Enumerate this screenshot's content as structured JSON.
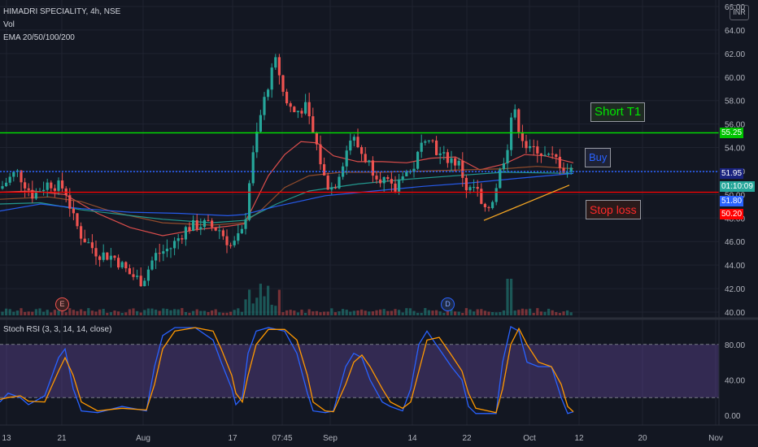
{
  "header": {
    "symbol": "HIMADRI SPECIALITY, 4h, NSE",
    "vol": "Vol",
    "ema": "EMA 20/50/100/200",
    "currency": "INR"
  },
  "rsi_title": "Stoch RSI (3, 3, 14, 14, close)",
  "annotations": {
    "short_t1": "Short T1",
    "buy": "Buy",
    "stop_loss": "Stop loss"
  },
  "events": {
    "earnings": "E",
    "dividend": "D"
  },
  "price_tags": {
    "level_high": "55.25",
    "last_price": "51.95",
    "countdown": "01:10:09",
    "ema_value": "51.80",
    "level_low": "50.20"
  },
  "colors": {
    "background": "#131722",
    "up": "#26a69a",
    "down": "#ef5350",
    "green_line": "#00e600",
    "red_line": "#ff0000",
    "blue_line": "#2962ff",
    "trendline": "#f5a623",
    "rsi_k": "#2962ff",
    "rsi_d": "#ff9800",
    "rsi_band": "#7e57c2"
  },
  "chart_data": {
    "type": "candlestick",
    "price_axis": {
      "ticks": [
        "66.00",
        "64.00",
        "62.00",
        "60.00",
        "58.00",
        "56.00",
        "54.00",
        "52.00",
        "50.00",
        "48.00",
        "46.00",
        "44.00",
        "42.00",
        "40.00"
      ],
      "range": [
        40,
        66
      ]
    },
    "x_axis": {
      "ticks": [
        "13",
        "21",
        "Aug",
        "17",
        "07:45",
        "Sep",
        "14",
        "22",
        "Oct",
        "12",
        "20",
        "Nov"
      ]
    },
    "horizontal_levels": [
      {
        "value": 55.25,
        "color": "green"
      },
      {
        "value": 51.95,
        "color": "blue",
        "style": "dotted"
      },
      {
        "value": 50.2,
        "color": "red"
      }
    ],
    "trendline": {
      "from": [
        595,
        47.8
      ],
      "to": [
        700,
        50.8
      ]
    },
    "ema_series": [
      {
        "name": "EMA 20",
        "color": "#ef5350",
        "points": [
          [
            0,
            50.2
          ],
          [
            40,
            50.3
          ],
          [
            80,
            50.0
          ],
          [
            120,
            48.4
          ],
          [
            160,
            47.2
          ],
          [
            200,
            46.5
          ],
          [
            240,
            47.0
          ],
          [
            280,
            47.3
          ],
          [
            300,
            47.5
          ],
          [
            310,
            48.8
          ],
          [
            330,
            51.6
          ],
          [
            350,
            53.4
          ],
          [
            370,
            54.5
          ],
          [
            390,
            54.4
          ],
          [
            410,
            53.3
          ],
          [
            440,
            52.8
          ],
          [
            470,
            52.8
          ],
          [
            500,
            52.7
          ],
          [
            530,
            53.1
          ],
          [
            560,
            53.2
          ],
          [
            590,
            52.1
          ],
          [
            620,
            52.6
          ],
          [
            645,
            53.4
          ],
          [
            670,
            53.3
          ],
          [
            705,
            52.7
          ]
        ]
      },
      {
        "name": "EMA 50",
        "color": "#a0522d",
        "points": [
          [
            0,
            49.6
          ],
          [
            60,
            49.8
          ],
          [
            100,
            49.4
          ],
          [
            140,
            48.5
          ],
          [
            200,
            47.6
          ],
          [
            260,
            47.4
          ],
          [
            300,
            47.6
          ],
          [
            320,
            48.6
          ],
          [
            350,
            50.6
          ],
          [
            380,
            51.6
          ],
          [
            420,
            51.9
          ],
          [
            470,
            51.9
          ],
          [
            520,
            52.0
          ],
          [
            570,
            52.1
          ],
          [
            620,
            52.2
          ],
          [
            660,
            52.4
          ],
          [
            705,
            52.2
          ]
        ]
      },
      {
        "name": "EMA 100",
        "color": "#26a69a",
        "points": [
          [
            0,
            49.2
          ],
          [
            50,
            49.3
          ],
          [
            100,
            48.7
          ],
          [
            150,
            48.3
          ],
          [
            200,
            47.9
          ],
          [
            260,
            47.6
          ],
          [
            300,
            47.8
          ],
          [
            340,
            49.2
          ],
          [
            380,
            50.3
          ],
          [
            440,
            50.9
          ],
          [
            500,
            51.3
          ],
          [
            560,
            51.6
          ],
          [
            620,
            51.9
          ],
          [
            705,
            51.8
          ]
        ]
      },
      {
        "name": "EMA 200",
        "color": "#2962ff",
        "points": [
          [
            0,
            48.6
          ],
          [
            50,
            49.2
          ],
          [
            100,
            48.8
          ],
          [
            160,
            48.5
          ],
          [
            220,
            48.4
          ],
          [
            280,
            48.2
          ],
          [
            300,
            48.3
          ],
          [
            340,
            49.0
          ],
          [
            400,
            49.9
          ],
          [
            460,
            50.3
          ],
          [
            520,
            50.7
          ],
          [
            580,
            51.0
          ],
          [
            640,
            51.4
          ],
          [
            705,
            51.8
          ]
        ]
      }
    ],
    "stoch_rsi": {
      "axis_ticks": [
        "80.00",
        "40.00",
        "0.00"
      ],
      "bands": [
        20,
        80
      ],
      "k": [
        [
          0,
          15
        ],
        [
          10,
          25
        ],
        [
          25,
          20
        ],
        [
          35,
          12
        ],
        [
          55,
          22
        ],
        [
          72,
          65
        ],
        [
          80,
          75
        ],
        [
          90,
          30
        ],
        [
          100,
          5
        ],
        [
          120,
          3
        ],
        [
          150,
          10
        ],
        [
          180,
          5
        ],
        [
          190,
          55
        ],
        [
          200,
          90
        ],
        [
          215,
          99
        ],
        [
          240,
          99
        ],
        [
          262,
          85
        ],
        [
          272,
          60
        ],
        [
          285,
          30
        ],
        [
          290,
          12
        ],
        [
          298,
          20
        ],
        [
          305,
          70
        ],
        [
          315,
          95
        ],
        [
          330,
          99
        ],
        [
          350,
          95
        ],
        [
          365,
          70
        ],
        [
          378,
          25
        ],
        [
          385,
          5
        ],
        [
          400,
          3
        ],
        [
          410,
          5
        ],
        [
          425,
          55
        ],
        [
          435,
          70
        ],
        [
          445,
          65
        ],
        [
          455,
          40
        ],
        [
          470,
          15
        ],
        [
          480,
          10
        ],
        [
          495,
          5
        ],
        [
          505,
          30
        ],
        [
          515,
          80
        ],
        [
          525,
          95
        ],
        [
          540,
          75
        ],
        [
          555,
          55
        ],
        [
          568,
          40
        ],
        [
          576,
          10
        ],
        [
          585,
          2
        ],
        [
          610,
          2
        ],
        [
          618,
          60
        ],
        [
          628,
          100
        ],
        [
          638,
          95
        ],
        [
          648,
          60
        ],
        [
          662,
          55
        ],
        [
          678,
          55
        ],
        [
          690,
          20
        ],
        [
          698,
          2
        ],
        [
          705,
          4
        ]
      ],
      "d": [
        [
          0,
          18
        ],
        [
          10,
          20
        ],
        [
          25,
          22
        ],
        [
          35,
          16
        ],
        [
          55,
          15
        ],
        [
          72,
          50
        ],
        [
          80,
          65
        ],
        [
          90,
          45
        ],
        [
          100,
          15
        ],
        [
          120,
          5
        ],
        [
          150,
          8
        ],
        [
          180,
          6
        ],
        [
          190,
          35
        ],
        [
          200,
          75
        ],
        [
          215,
          95
        ],
        [
          240,
          99
        ],
        [
          262,
          95
        ],
        [
          272,
          75
        ],
        [
          285,
          45
        ],
        [
          290,
          25
        ],
        [
          298,
          15
        ],
        [
          305,
          45
        ],
        [
          315,
          80
        ],
        [
          330,
          97
        ],
        [
          350,
          97
        ],
        [
          365,
          85
        ],
        [
          378,
          45
        ],
        [
          385,
          15
        ],
        [
          400,
          5
        ],
        [
          410,
          4
        ],
        [
          425,
          35
        ],
        [
          435,
          60
        ],
        [
          445,
          68
        ],
        [
          455,
          55
        ],
        [
          470,
          30
        ],
        [
          480,
          15
        ],
        [
          495,
          8
        ],
        [
          505,
          15
        ],
        [
          515,
          50
        ],
        [
          525,
          85
        ],
        [
          540,
          88
        ],
        [
          555,
          68
        ],
        [
          568,
          50
        ],
        [
          576,
          25
        ],
        [
          585,
          8
        ],
        [
          610,
          3
        ],
        [
          618,
          30
        ],
        [
          628,
          80
        ],
        [
          638,
          98
        ],
        [
          648,
          80
        ],
        [
          662,
          60
        ],
        [
          678,
          55
        ],
        [
          690,
          35
        ],
        [
          698,
          10
        ],
        [
          705,
          4
        ]
      ]
    }
  }
}
